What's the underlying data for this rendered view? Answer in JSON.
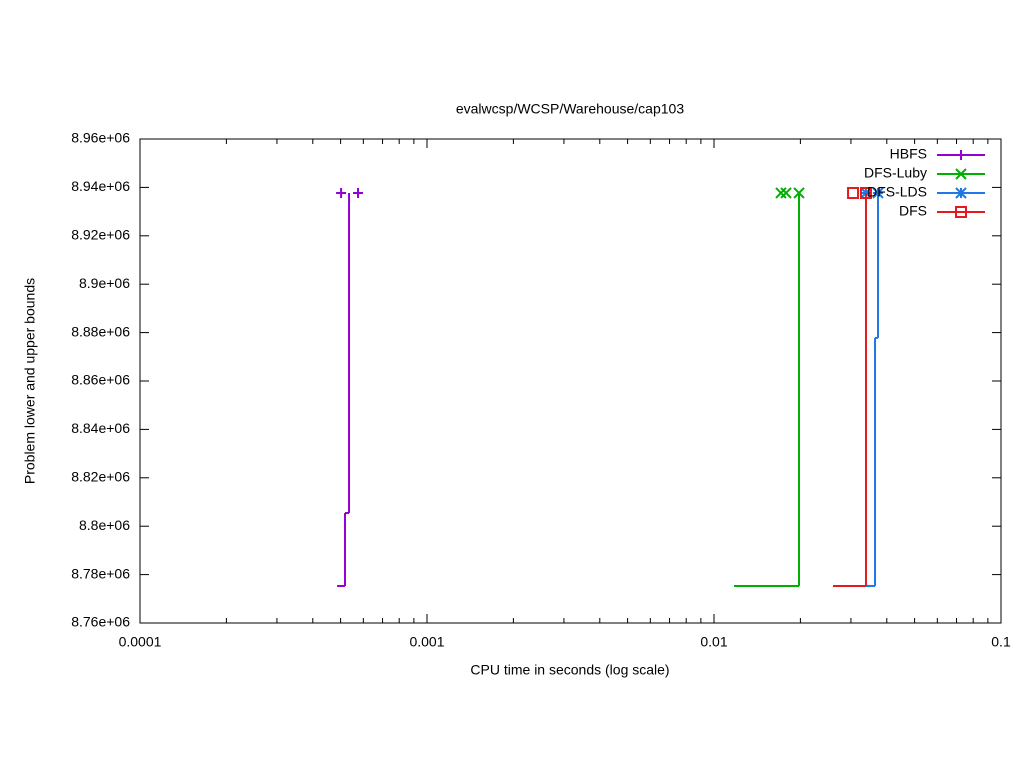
{
  "chart_data": {
    "type": "step",
    "title": "evalwcsp/WCSP/Warehouse/cap103",
    "xlabel": "CPU time in seconds (log scale)",
    "ylabel": "Problem lower and upper bounds",
    "xscale": "log",
    "xlim": [
      0.0001,
      0.1
    ],
    "xticks": [
      0.0001,
      0.001,
      0.01,
      0.1
    ],
    "ylim": [
      8760000,
      8960000
    ],
    "yticks": [
      {
        "value": 8760000,
        "label": "8.76e+06"
      },
      {
        "value": 8780000,
        "label": "8.78e+06"
      },
      {
        "value": 8800000,
        "label": "8.8e+06"
      },
      {
        "value": 8820000,
        "label": "8.82e+06"
      },
      {
        "value": 8840000,
        "label": "8.84e+06"
      },
      {
        "value": 8860000,
        "label": "8.86e+06"
      },
      {
        "value": 8880000,
        "label": "8.88e+06"
      },
      {
        "value": 8900000,
        "label": "8.9e+06"
      },
      {
        "value": 8920000,
        "label": "8.92e+06"
      },
      {
        "value": 8940000,
        "label": "8.94e+06"
      },
      {
        "value": 8960000,
        "label": "8.96e+06"
      }
    ],
    "legend": "top-right",
    "series": [
      {
        "name": "HBFS",
        "color": "#9400d3",
        "marker": "plus",
        "x": [
          0.000486,
          0.000518,
          0.000535
        ],
        "values": [
          8775300,
          8805450,
          8937700
        ],
        "bound_x": [
          0.000502,
          0.000575
        ],
        "bound_values": [
          8937700,
          8937700
        ]
      },
      {
        "name": "DFS-Luby",
        "color": "#00b000",
        "marker": "cross",
        "x": [
          0.01174,
          0.01978
        ],
        "values": [
          8775300,
          8937700
        ],
        "bound_x": [
          0.01711,
          0.01782,
          0.01978
        ],
        "bound_values": [
          8937700,
          8937700,
          8937700
        ]
      },
      {
        "name": "DFS-LDS",
        "color": "#1e78e6",
        "marker": "asterisk",
        "x": [
          0.03385,
          0.0364,
          0.03728
        ],
        "values": [
          8775300,
          8877800,
          8937700
        ],
        "bound_x": [
          0.03385,
          0.03728
        ],
        "bound_values": [
          8937700,
          8937700
        ]
      },
      {
        "name": "DFS",
        "color": "#e41a1c",
        "marker": "square",
        "x": [
          0.02598,
          0.03385
        ],
        "values": [
          8775300,
          8937700
        ],
        "bound_x": [
          0.03051,
          0.03385
        ],
        "bound_values": [
          8937700,
          8937700
        ]
      }
    ]
  }
}
